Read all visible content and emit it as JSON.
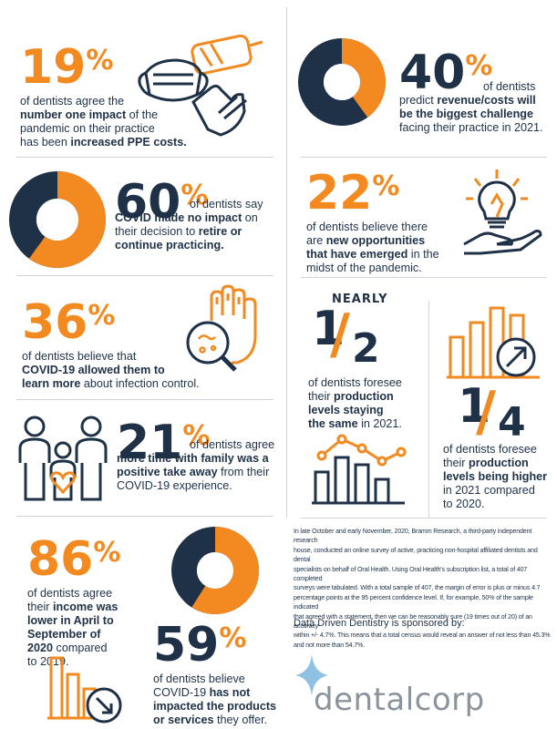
{
  "stats": {
    "s19": {
      "num": "19",
      "pct": "%",
      "pre": "of dentists agree the",
      "b1": "number one impact",
      "m1": " of the",
      "l3": "pandemic on their practice",
      "l4a": "has been ",
      "l4b": "increased PPE costs."
    },
    "s40": {
      "num": "40",
      "pct": "%",
      "l1": "of dentists",
      "l2a": "predict ",
      "l2b": "revenue/costs will",
      "l3": "be the biggest challenge",
      "l4": "facing their practice in 2021.",
      "donut_fraction": 0.4
    },
    "s60": {
      "num": "60",
      "pct": "%",
      "l1": " of dentists say",
      "l2a": "COVID made no impact",
      "l2b": " on",
      "l3a": "their decision to ",
      "l3b": "retire or",
      "l4": "continue practicing.",
      "donut_fraction": 0.6
    },
    "s22": {
      "num": "22",
      "pct": "%",
      "l1": "of dentists believe there",
      "l2a": "are ",
      "l2b": "new opportunities",
      "l3a": "that have emerged",
      "l3b": " in the",
      "l4": "midst of the pandemic."
    },
    "s36": {
      "num": "36",
      "pct": "%",
      "l1": "of dentists believe that",
      "l2": "COVID-19 allowed them to",
      "l3a": "learn more",
      "l3b": " about infection control."
    },
    "half": {
      "nearly": "NEARLY",
      "num": "1",
      "den": "2",
      "l1": "of dentists foresee",
      "l2a": "their ",
      "l2b": "production",
      "l3": "levels staying",
      "l4a": "the same",
      "l4b": " in 2021."
    },
    "quarter": {
      "num": "1",
      "den": "4",
      "l1": "of dentists foresee",
      "l2a": "their ",
      "l2b": "production",
      "l3": "levels being higher",
      "l4": "in 2021 compared",
      "l5": "to 2020."
    },
    "s21": {
      "num": "21",
      "pct": "%",
      "l1": " of dentists agree",
      "l2a": "more time with family was a",
      "l3a": "positive take away",
      "l3b": " from their",
      "l4": "COVID-19 experience."
    },
    "s86": {
      "num": "86",
      "pct": "%",
      "l1": "of dentists agree",
      "l2a": "their ",
      "l2b": "income was",
      "l3": "lower in April to",
      "l4": "September of",
      "l5a": "2020",
      "l5b": " compared",
      "l6": "to 2019."
    },
    "s59": {
      "num": "59",
      "pct": "%",
      "l1": "of dentists believe",
      "l2a": "COVID-19 ",
      "l2b": "has not",
      "l3": "impacted the products",
      "l4a": "or services",
      "l4b": " they offer.",
      "donut_fraction": 0.59
    }
  },
  "methodology": {
    "l1": "In late October and early November, 2020, Bramm Research, a third-party independent research",
    "l2": "house, conducted an online survey of active, practicing non-hospital affiliated dentists and dental",
    "l3": "specialists on behalf of Oral Health. Using Oral Health's subscription list, a total of 407 completed",
    "l4": "surveys were tabulated. With a total sample of 407, the margin of error is plus or minus 4.7",
    "l5": "percentage points at the 95 percent confidence level. If, for example, 50% of the sample indicated",
    "l6": "that agreed with a statement, then we can be reasonably sure (19 times out of 20) of an accuracy",
    "l7": "within +/- 4.7%. This means that a total census would reveal an answer of not less than 45.3%",
    "l8": "and not more than 54.7%."
  },
  "sponsor": {
    "label": "Data Driven Dentistry is sponsored by:",
    "logo": "dentalcorp"
  },
  "colors": {
    "navy": "#1f3147",
    "orange": "#f28a21",
    "gray": "#cfd4da"
  }
}
